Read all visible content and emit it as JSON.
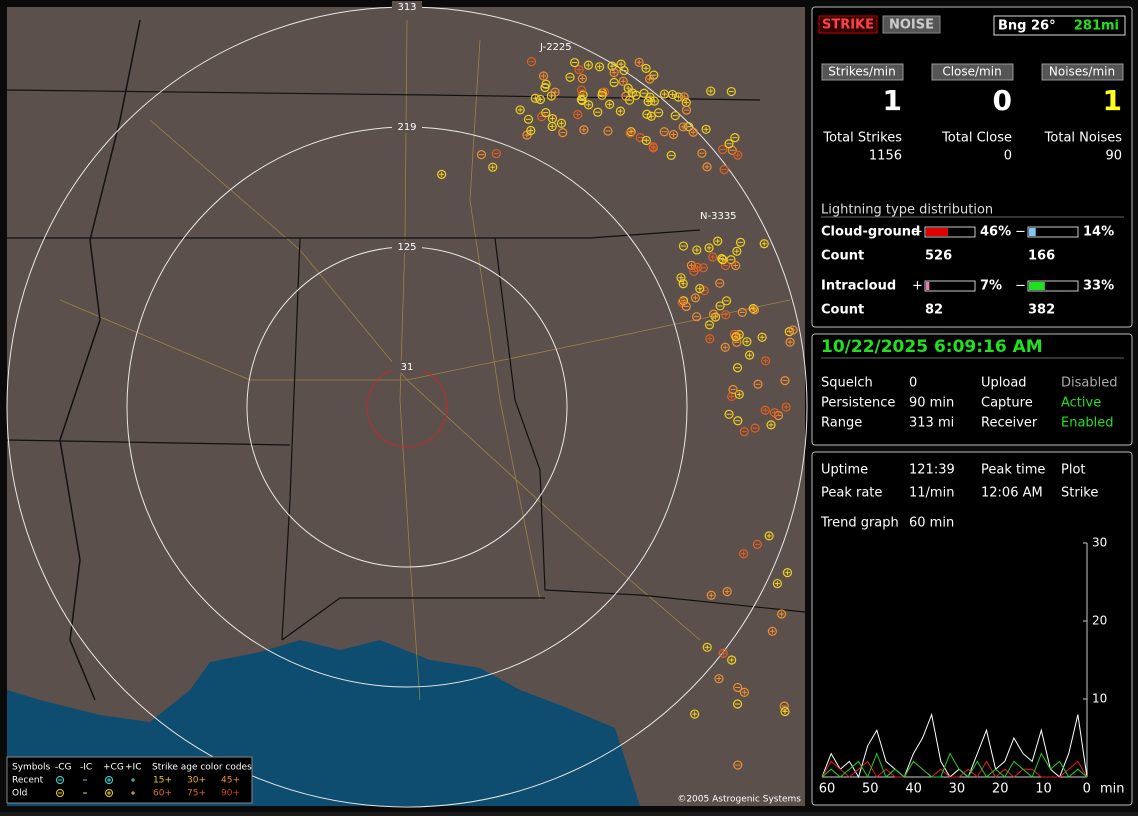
{
  "map": {
    "ring_labels": [
      "313",
      "219",
      "125",
      "31"
    ],
    "storm_cells": [
      "J-2225",
      "N-3335"
    ],
    "legend": {
      "symbols_label": "Symbols",
      "columns": [
        "-CG",
        "-IC",
        "+CG",
        "+IC"
      ],
      "age_title": "Strike age color codes",
      "rows": [
        {
          "label": "Recent",
          "ages": [
            "15+",
            "30+",
            "45+"
          ]
        },
        {
          "label": "Old",
          "ages": [
            "60+",
            "75+",
            "90+"
          ]
        }
      ]
    },
    "copyright": "©2005 Astrogenic Systems"
  },
  "panel": {
    "mode_buttons": [
      "STRIKE",
      "NOISE"
    ],
    "bearing": "Bng 26°",
    "distance": "281mi",
    "rates": [
      {
        "label": "Strikes/min",
        "value": "1"
      },
      {
        "label": "Close/min",
        "value": "0"
      },
      {
        "label": "Noises/min",
        "value": "1"
      }
    ],
    "totals": [
      {
        "label": "Total Strikes",
        "value": "1156"
      },
      {
        "label": "Total Close",
        "value": "0"
      },
      {
        "label": "Total Noises",
        "value": "90"
      }
    ],
    "distribution": {
      "title": "Lightning type distribution",
      "rows": [
        {
          "label": "Cloud-ground",
          "positive": {
            "sign": "+",
            "value": 46,
            "label": "46%",
            "color": "#e00000"
          },
          "negative": {
            "sign": "−",
            "value": 14,
            "label": "14%",
            "color": "#7ec8f0"
          },
          "count_label": "Count",
          "counts": [
            "526",
            "166"
          ]
        },
        {
          "label": "Intracloud",
          "positive": {
            "sign": "+",
            "value": 7,
            "label": "7%",
            "color": "#e080b0"
          },
          "negative": {
            "sign": "−",
            "value": 33,
            "label": "33%",
            "color": "#20e020"
          },
          "count_label": "Count",
          "counts": [
            "82",
            "382"
          ]
        }
      ]
    }
  },
  "status": {
    "datetime": "10/22/2025 6:09:16 AM",
    "rows": [
      [
        "Squelch",
        "0",
        "Upload",
        "Disabled"
      ],
      [
        "Persistence",
        "90 min",
        "Capture",
        "Active"
      ],
      [
        "Range",
        "313 mi",
        "Receiver",
        "Enabled"
      ]
    ]
  },
  "stats": {
    "rows": [
      [
        "Uptime",
        "121:39",
        "Peak time",
        "Plot"
      ],
      [
        "Peak rate",
        "11/min",
        "12:06 AM",
        "Strike"
      ]
    ],
    "trend_label": "Trend graph",
    "trend_value": "60 min",
    "graph": {
      "ylim": [
        0,
        30
      ],
      "yticks": [
        30,
        20,
        10
      ],
      "xticks": [
        "60",
        "50",
        "40",
        "30",
        "20",
        "10",
        "0"
      ],
      "x_unit": "min",
      "series": [
        {
          "color": "#ffffff",
          "values": [
            0,
            3,
            1,
            2,
            0,
            4,
            6,
            2,
            1,
            0,
            3,
            5,
            8,
            2,
            0,
            1,
            0,
            3,
            6,
            1,
            2,
            5,
            3,
            2,
            6,
            1,
            0,
            3,
            8,
            0
          ]
        },
        {
          "color": "#e02020",
          "values": [
            0,
            2,
            1,
            0,
            1,
            2,
            0,
            1,
            0,
            0,
            2,
            1,
            0,
            1,
            0,
            0,
            1,
            0,
            2,
            0,
            1,
            0,
            1,
            1,
            0,
            0,
            0,
            1,
            2,
            0
          ]
        },
        {
          "color": "#20d020",
          "values": [
            0,
            1,
            0,
            1,
            2,
            0,
            3,
            0,
            1,
            0,
            2,
            1,
            0,
            0,
            3,
            1,
            0,
            2,
            0,
            1,
            0,
            2,
            1,
            0,
            3,
            1,
            2,
            0,
            1,
            0
          ]
        }
      ]
    }
  }
}
